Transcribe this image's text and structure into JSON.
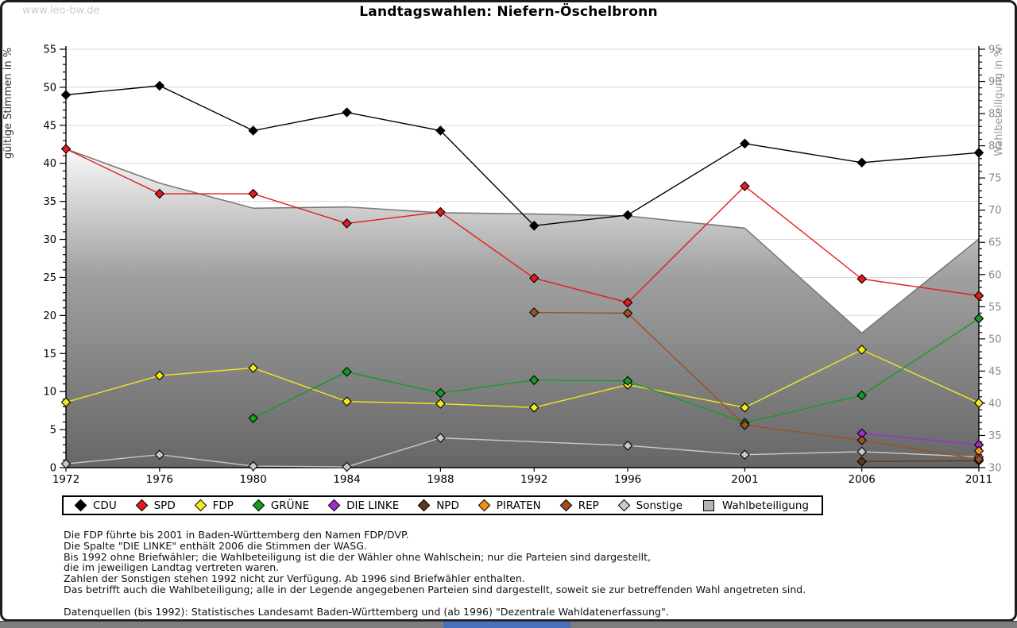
{
  "page": {
    "watermark": "www.leo-bw.de",
    "title": "Landtagswahlen: Niefern-Öschelbronn"
  },
  "chart_data": {
    "type": "line",
    "title": "Landtagswahlen: Niefern-Öschelbronn",
    "x_years": [
      1972,
      1976,
      1980,
      1984,
      1988,
      1992,
      1996,
      2001,
      2006,
      2011
    ],
    "left_axis": {
      "label": "gültige Stimmen in %",
      "min": 0,
      "max": 55,
      "major_step": 5,
      "minor_step": 1
    },
    "right_axis": {
      "label": "Wahlbeteiligung in %",
      "min": 30,
      "max": 95,
      "major_step": 5,
      "minor_step": 1
    },
    "grid": "horizontal-on-left-axis-majors",
    "colors": {
      "grid": "#d9d9d9",
      "axis": "#000000",
      "right_tick_label": "#8a8a8a",
      "left_label": "#333333",
      "right_label": "#999999",
      "area_edge": "#7a7a7a",
      "area_fill_top": "#fbfbfb",
      "area_fill_mid": "#a0a0a0",
      "area_fill_bottom": "#666666"
    },
    "series": [
      {
        "name": "Wahlbeteiligung",
        "type": "area",
        "axis": "right",
        "color": "#b3b3b3",
        "x": [
          1972,
          1976,
          1980,
          1984,
          1988,
          1992,
          1996,
          2001,
          2006,
          2011
        ],
        "values": [
          79.5,
          74.2,
          70.3,
          70.5,
          69.6,
          69.4,
          69.1,
          67.2,
          50.9,
          65.5
        ]
      },
      {
        "name": "Sonstige",
        "type": "line",
        "axis": "left",
        "color": "#c9c9c9",
        "x": [
          1972,
          1976,
          1980,
          1984,
          1988,
          1996,
          2001,
          2006,
          2011
        ],
        "values": [
          0.5,
          1.7,
          0.2,
          0.1,
          3.9,
          2.9,
          1.7,
          2.1,
          1.4
        ]
      },
      {
        "name": "FDP",
        "type": "line",
        "axis": "left",
        "color": "#f2ea1f",
        "x": [
          1972,
          1976,
          1980,
          1984,
          1988,
          1992,
          1996,
          2001,
          2006,
          2011
        ],
        "values": [
          8.6,
          12.1,
          13.1,
          8.7,
          8.4,
          7.9,
          10.9,
          7.9,
          15.5,
          8.5
        ]
      },
      {
        "name": "GRÜNE",
        "type": "line",
        "axis": "left",
        "color": "#169b25",
        "x": [
          1980,
          1984,
          1988,
          1992,
          1996,
          2001,
          2006,
          2011
        ],
        "values": [
          6.5,
          12.6,
          9.8,
          11.5,
          11.4,
          5.9,
          9.5,
          19.6
        ]
      },
      {
        "name": "DIE LINKE",
        "type": "line",
        "axis": "left",
        "color": "#9b30d0",
        "x": [
          2006,
          2011
        ],
        "values": [
          4.5,
          3.0
        ]
      },
      {
        "name": "NPD",
        "type": "line",
        "axis": "left",
        "color": "#5e3a1d",
        "x": [
          2006,
          2011
        ],
        "values": [
          0.8,
          0.9
        ]
      },
      {
        "name": "PIRATEN",
        "type": "line",
        "axis": "left",
        "color": "#f29018",
        "x": [
          2011
        ],
        "values": [
          2.2
        ]
      },
      {
        "name": "REP",
        "type": "line",
        "axis": "left",
        "color": "#9e5021",
        "x": [
          1992,
          1996,
          2001,
          2006,
          2011
        ],
        "values": [
          20.4,
          20.3,
          5.6,
          3.6,
          1.1
        ]
      },
      {
        "name": "SPD",
        "type": "line",
        "axis": "left",
        "color": "#e31b1b",
        "x": [
          1972,
          1976,
          1980,
          1984,
          1988,
          1992,
          1996,
          2001,
          2006,
          2011
        ],
        "values": [
          41.9,
          36.0,
          36.0,
          32.1,
          33.6,
          24.9,
          21.7,
          37.0,
          24.8,
          22.6
        ]
      },
      {
        "name": "CDU",
        "type": "line",
        "axis": "left",
        "color": "#000000",
        "x": [
          1972,
          1976,
          1980,
          1984,
          1988,
          1992,
          1996,
          2001,
          2006,
          2011
        ],
        "values": [
          49.0,
          50.2,
          44.3,
          46.7,
          44.3,
          31.8,
          33.2,
          42.6,
          40.1,
          41.4
        ]
      }
    ],
    "legend_position": "bottom"
  },
  "legend": {
    "items": [
      {
        "label": "CDU",
        "color": "#000000",
        "shape": "diamond"
      },
      {
        "label": "SPD",
        "color": "#e31b1b",
        "shape": "diamond"
      },
      {
        "label": "FDP",
        "color": "#f2ea1f",
        "shape": "diamond"
      },
      {
        "label": "GRÜNE",
        "color": "#169b25",
        "shape": "diamond"
      },
      {
        "label": "DIE LINKE",
        "color": "#9b30d0",
        "shape": "diamond"
      },
      {
        "label": "NPD",
        "color": "#5e3a1d",
        "shape": "diamond"
      },
      {
        "label": "PIRATEN",
        "color": "#f29018",
        "shape": "diamond"
      },
      {
        "label": "REP",
        "color": "#9e5021",
        "shape": "diamond"
      },
      {
        "label": "Sonstige",
        "color": "#c9c9c9",
        "shape": "diamond"
      },
      {
        "label": "Wahlbeteiligung",
        "color": "#b3b3b3",
        "shape": "square"
      }
    ]
  },
  "footnotes": {
    "lines": [
      "Die FDP führte bis 2001 in Baden-Württemberg den Namen FDP/DVP.",
      "Die Spalte \"DIE LINKE\" enthält 2006 die Stimmen der WASG.",
      "Bis 1992 ohne Briefwähler; die Wahlbeteiligung ist die der Wähler ohne Wahlschein; nur die Parteien sind dargestellt,",
      "die im jeweiligen Landtag vertreten waren.",
      "Zahlen der Sonstigen stehen 1992 nicht zur Verfügung. Ab 1996 sind Briefwähler enthalten.",
      "Das betrifft auch die Wahlbeteiligung; alle in der Legende angegebenen Parteien sind dargestellt, soweit sie zur betreffenden Wahl angetreten sind.",
      "",
      "Datenquellen (bis 1992): Statistisches Landesamt Baden-Württemberg und (ab 1996) \"Dezentrale Wahldatenerfassung\"."
    ]
  }
}
